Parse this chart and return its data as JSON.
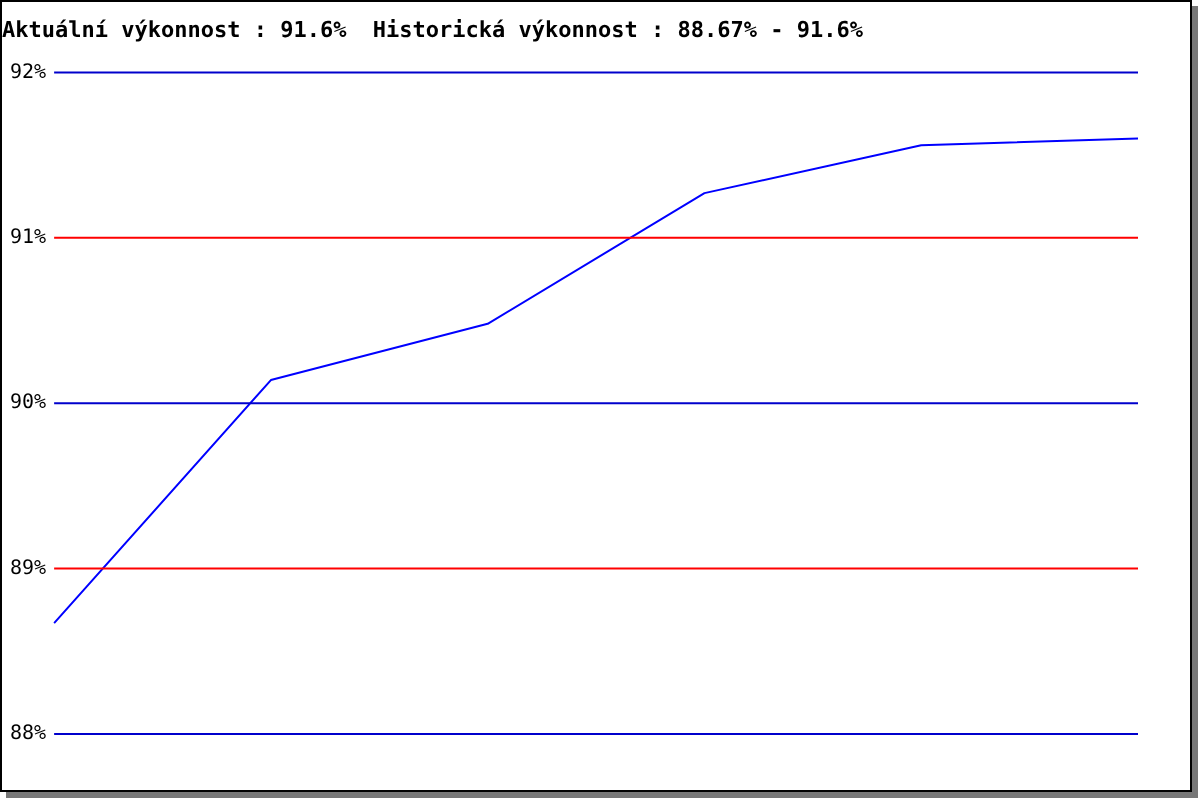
{
  "chart_data": {
    "type": "line",
    "title": "Aktuální výkonnost : 91.6%  Historická výkonnost : 88.67% - 91.6%",
    "categories": [
      null,
      null,
      null,
      null,
      null,
      null
    ],
    "series": [
      {
        "color": "#0000ff",
        "values": [
          88.67,
          90.14,
          90.48,
          91.27,
          91.56,
          91.6
        ]
      }
    ],
    "ylim": [
      88,
      92
    ],
    "yticks": [
      {
        "value": 88,
        "label": "88%"
      },
      {
        "value": 89,
        "label": "89%"
      },
      {
        "value": 90,
        "label": "90%"
      },
      {
        "value": 91,
        "label": "91%"
      },
      {
        "value": 92,
        "label": "92%"
      }
    ],
    "marker": "none",
    "line_style": "solid",
    "legend": false,
    "ref_lines": [
      {
        "axis": "y",
        "value": 88,
        "color": "#0000cc"
      },
      {
        "axis": "y",
        "value": 90,
        "color": "#0000cc"
      },
      {
        "axis": "y",
        "value": 92,
        "color": "#0000cc"
      },
      {
        "axis": "y",
        "value": 89,
        "color": "#ff0000"
      },
      {
        "axis": "y",
        "value": 91,
        "color": "#ff0000"
      }
    ]
  }
}
